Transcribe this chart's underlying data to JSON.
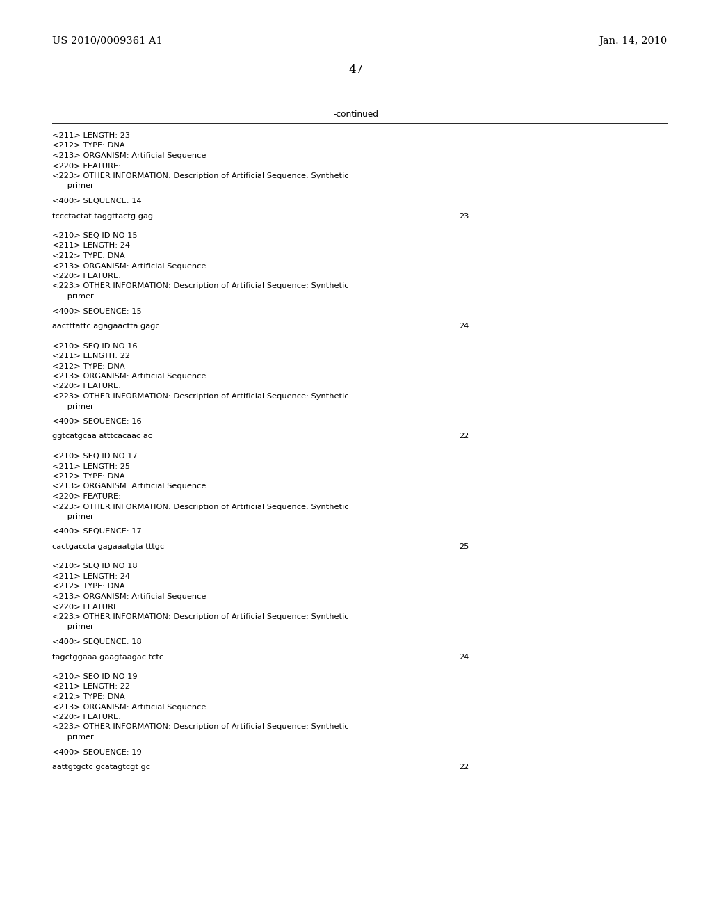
{
  "background_color": "#ffffff",
  "header_left": "US 2010/0009361 A1",
  "header_right": "Jan. 14, 2010",
  "page_number": "47",
  "continued_label": "-continued",
  "font_mono": "Courier New",
  "font_serif": "DejaVu Serif",
  "content": [
    {
      "type": "meta",
      "lines": [
        "<211> LENGTH: 23",
        "<212> TYPE: DNA",
        "<213> ORGANISM: Artificial Sequence",
        "<220> FEATURE:",
        "<223> OTHER INFORMATION: Description of Artificial Sequence: Synthetic",
        "      primer"
      ]
    },
    {
      "type": "blank"
    },
    {
      "type": "seq_label",
      "text": "<400> SEQUENCE: 14"
    },
    {
      "type": "blank"
    },
    {
      "type": "sequence",
      "seq": "tccctactat taggttactg gag",
      "num": "23"
    },
    {
      "type": "blank"
    },
    {
      "type": "blank"
    },
    {
      "type": "meta",
      "lines": [
        "<210> SEQ ID NO 15",
        "<211> LENGTH: 24",
        "<212> TYPE: DNA",
        "<213> ORGANISM: Artificial Sequence",
        "<220> FEATURE:",
        "<223> OTHER INFORMATION: Description of Artificial Sequence: Synthetic",
        "      primer"
      ]
    },
    {
      "type": "blank"
    },
    {
      "type": "seq_label",
      "text": "<400> SEQUENCE: 15"
    },
    {
      "type": "blank"
    },
    {
      "type": "sequence",
      "seq": "aactttattc agagaactta gagc",
      "num": "24"
    },
    {
      "type": "blank"
    },
    {
      "type": "blank"
    },
    {
      "type": "meta",
      "lines": [
        "<210> SEQ ID NO 16",
        "<211> LENGTH: 22",
        "<212> TYPE: DNA",
        "<213> ORGANISM: Artificial Sequence",
        "<220> FEATURE:",
        "<223> OTHER INFORMATION: Description of Artificial Sequence: Synthetic",
        "      primer"
      ]
    },
    {
      "type": "blank"
    },
    {
      "type": "seq_label",
      "text": "<400> SEQUENCE: 16"
    },
    {
      "type": "blank"
    },
    {
      "type": "sequence",
      "seq": "ggtcatgcaa atttcacaac ac",
      "num": "22"
    },
    {
      "type": "blank"
    },
    {
      "type": "blank"
    },
    {
      "type": "meta",
      "lines": [
        "<210> SEQ ID NO 17",
        "<211> LENGTH: 25",
        "<212> TYPE: DNA",
        "<213> ORGANISM: Artificial Sequence",
        "<220> FEATURE:",
        "<223> OTHER INFORMATION: Description of Artificial Sequence: Synthetic",
        "      primer"
      ]
    },
    {
      "type": "blank"
    },
    {
      "type": "seq_label",
      "text": "<400> SEQUENCE: 17"
    },
    {
      "type": "blank"
    },
    {
      "type": "sequence",
      "seq": "cactgaccta gagaaatgta tttgc",
      "num": "25"
    },
    {
      "type": "blank"
    },
    {
      "type": "blank"
    },
    {
      "type": "meta",
      "lines": [
        "<210> SEQ ID NO 18",
        "<211> LENGTH: 24",
        "<212> TYPE: DNA",
        "<213> ORGANISM: Artificial Sequence",
        "<220> FEATURE:",
        "<223> OTHER INFORMATION: Description of Artificial Sequence: Synthetic",
        "      primer"
      ]
    },
    {
      "type": "blank"
    },
    {
      "type": "seq_label",
      "text": "<400> SEQUENCE: 18"
    },
    {
      "type": "blank"
    },
    {
      "type": "sequence",
      "seq": "tagctggaaa gaagtaagac tctc",
      "num": "24"
    },
    {
      "type": "blank"
    },
    {
      "type": "blank"
    },
    {
      "type": "meta",
      "lines": [
        "<210> SEQ ID NO 19",
        "<211> LENGTH: 22",
        "<212> TYPE: DNA",
        "<213> ORGANISM: Artificial Sequence",
        "<220> FEATURE:",
        "<223> OTHER INFORMATION: Description of Artificial Sequence: Synthetic",
        "      primer"
      ]
    },
    {
      "type": "blank"
    },
    {
      "type": "seq_label",
      "text": "<400> SEQUENCE: 19"
    },
    {
      "type": "blank"
    },
    {
      "type": "sequence",
      "seq": "aattgtgctc gcatagtcgt gc",
      "num": "22"
    }
  ]
}
